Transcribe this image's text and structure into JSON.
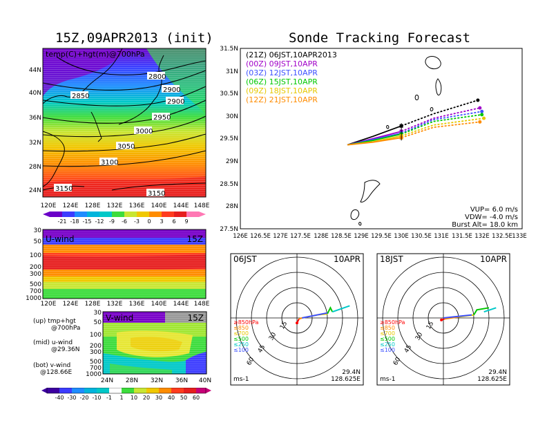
{
  "left_title": "15Z,09APR2013 (init)",
  "right_title": "Sonde Tracking Forecast",
  "map_panel": {
    "overlay_label": "temp(C)+hgt(m)@700hPa",
    "lat_ticks": [
      "44N",
      "40N",
      "36N",
      "32N",
      "28N",
      "24N"
    ],
    "lon_ticks": [
      "120E",
      "124E",
      "128E",
      "132E",
      "136E",
      "140E",
      "144E",
      "148E"
    ],
    "contour_labels": [
      "2800",
      "2850",
      "2900",
      "2900",
      "2950",
      "3000",
      "3050",
      "3100",
      "3150",
      "3150"
    ],
    "colorbar_ticks": [
      "-21",
      "-18",
      "-15",
      "-12",
      "-9",
      "-6",
      "-3",
      "0",
      "3",
      "6",
      "9"
    ]
  },
  "u_panel": {
    "label": "U-wind",
    "time": "15Z",
    "pressure_ticks": [
      "30",
      "50",
      "100",
      "200",
      "300",
      "500",
      "700",
      "1000"
    ],
    "lon_ticks": [
      "120E",
      "124E",
      "128E",
      "132E",
      "136E",
      "140E",
      "144E",
      "148E"
    ]
  },
  "v_panel": {
    "label": "V-wind",
    "time": "15Z",
    "pressure_ticks": [
      "30",
      "50",
      "100",
      "200",
      "300",
      "500",
      "700",
      "1000"
    ],
    "lat_ticks": [
      "24N",
      "28N",
      "32N",
      "36N",
      "40N"
    ],
    "colorbar_ticks": [
      "-40",
      "-30",
      "-20",
      "-10",
      "-1",
      "1",
      "10",
      "20",
      "30",
      "40",
      "50",
      "60"
    ]
  },
  "captions": [
    {
      "line1": "(up) tmp+hgt",
      "line2": "@700hPa"
    },
    {
      "line1": "(mid) u-wind",
      "line2": "@29.36N"
    },
    {
      "line1": "(bot) v-wind",
      "line2": "@128.66E"
    }
  ],
  "track_panel": {
    "legend": [
      {
        "text": "(21Z) 06JST,10APR2013",
        "color": "#000000"
      },
      {
        "text": "(00Z) 09JST,10APR",
        "color": "#a000c8"
      },
      {
        "text": "(03Z) 12JST,10APR",
        "color": "#3c50ff"
      },
      {
        "text": "(06Z) 15JST,10APR",
        "color": "#00c800"
      },
      {
        "text": "(09Z) 18JST,10APR",
        "color": "#e6c800"
      },
      {
        "text": "(12Z) 21JST,10APR",
        "color": "#ff8c00"
      }
    ],
    "lat_ticks": [
      "31.5N",
      "31N",
      "30.5N",
      "30N",
      "29.5N",
      "29N",
      "28.5N",
      "28N",
      "27.5N"
    ],
    "lon_ticks": [
      "126E",
      "126.5E",
      "127E",
      "127.5E",
      "128E",
      "128.5E",
      "129E",
      "129.5E",
      "130E",
      "130.5E",
      "131E",
      "131.5E",
      "132E",
      "132.5E",
      "133E"
    ],
    "params": [
      "VUP= 6.0 m/s",
      "VDW= -4.0 m/s",
      "Burst Alt= 18.0 km"
    ]
  },
  "hodo_left": {
    "time": "06JST",
    "date": "10APR",
    "ring_labels": [
      "15",
      "30",
      "45",
      "60"
    ],
    "legend": [
      {
        "text": "≥850hPa",
        "color": "#ff0000"
      },
      {
        "text": "≤850",
        "color": "#ff8c00"
      },
      {
        "text": "≤700",
        "color": "#e6c800"
      },
      {
        "text": "≤500",
        "color": "#00c800"
      },
      {
        "text": "≤250",
        "color": "#00c8c8"
      },
      {
        "text": "≤100",
        "color": "#3c50ff"
      }
    ],
    "unit": "ms-1",
    "lat": "29.4N",
    "lon": "128.625E"
  },
  "hodo_right": {
    "time": "18JST",
    "date": "10APR",
    "ring_labels": [
      "15",
      "30",
      "45",
      "60"
    ],
    "legend": [
      {
        "text": "≥850hPa",
        "color": "#ff0000"
      },
      {
        "text": "≤850",
        "color": "#ff8c00"
      },
      {
        "text": "≤700",
        "color": "#e6c800"
      },
      {
        "text": "≤500",
        "color": "#00c800"
      },
      {
        "text": "≤250",
        "color": "#00c8c8"
      },
      {
        "text": "≤100",
        "color": "#3c50ff"
      }
    ],
    "unit": "ms-1",
    "lat": "29.4N",
    "lon": "128.625E"
  },
  "chart_data": [
    {
      "type": "heatmap",
      "title": "temp(C)+hgt(m)@700hPa",
      "xlabel": "",
      "ylabel": "",
      "xlim": [
        120,
        150
      ],
      "ylim": [
        22,
        48
      ],
      "contour_values": [
        2800,
        2850,
        2900,
        2950,
        3000,
        3050,
        3100,
        3150
      ],
      "colorbar_range": [
        -21,
        9
      ]
    },
    {
      "type": "heatmap",
      "title": "U-wind",
      "xlim": [
        120,
        150
      ],
      "pressure_levels": [
        30,
        50,
        100,
        200,
        300,
        500,
        700,
        1000
      ]
    },
    {
      "type": "heatmap",
      "title": "V-wind",
      "xlim": [
        24,
        40
      ],
      "pressure_levels": [
        30,
        50,
        100,
        200,
        300,
        500,
        700,
        1000
      ],
      "colorbar_range": [
        -40,
        60
      ]
    },
    {
      "type": "line",
      "title": "Sonde Tracking Forecast",
      "xlim": [
        126,
        133
      ],
      "ylim": [
        27.5,
        31.5
      ],
      "launch": {
        "lon": 128.66,
        "lat": 29.36
      },
      "series": [
        {
          "name": "(21Z) 06JST,10APR2013",
          "color": "#000000",
          "points": [
            [
              128.66,
              29.36
            ],
            [
              129.3,
              29.55
            ],
            [
              130.0,
              29.78
            ],
            [
              130.8,
              30.05
            ],
            [
              131.9,
              30.35
            ]
          ],
          "end": [
            131.9,
            30.35
          ]
        },
        {
          "name": "(00Z) 09JST,10APR",
          "color": "#a000c8",
          "points": [
            [
              128.66,
              29.36
            ],
            [
              129.3,
              29.5
            ],
            [
              130.0,
              29.66
            ],
            [
              130.8,
              29.95
            ],
            [
              131.95,
              30.18
            ]
          ],
          "end": [
            131.95,
            30.18
          ]
        },
        {
          "name": "(03Z) 12JST,10APR",
          "color": "#3c50ff",
          "points": [
            [
              128.66,
              29.36
            ],
            [
              129.3,
              29.48
            ],
            [
              130.0,
              29.62
            ],
            [
              130.8,
              29.92
            ],
            [
              132.0,
              30.1
            ]
          ],
          "end": [
            132.0,
            30.1
          ]
        },
        {
          "name": "(06Z) 15JST,10APR",
          "color": "#00c800",
          "points": [
            [
              128.66,
              29.36
            ],
            [
              129.3,
              29.46
            ],
            [
              130.0,
              29.6
            ],
            [
              130.8,
              29.88
            ],
            [
              132.0,
              30.03
            ]
          ],
          "end": [
            132.0,
            30.03
          ]
        },
        {
          "name": "(09Z) 18JST,10APR",
          "color": "#e6c800",
          "points": [
            [
              128.66,
              29.36
            ],
            [
              129.3,
              29.43
            ],
            [
              130.0,
              29.56
            ],
            [
              130.8,
              29.8
            ],
            [
              132.05,
              29.95
            ]
          ],
          "end": [
            132.05,
            29.95
          ]
        },
        {
          "name": "(12Z) 21JST,10APR",
          "color": "#ff8c00",
          "points": [
            [
              128.66,
              29.36
            ],
            [
              129.3,
              29.42
            ],
            [
              130.0,
              29.52
            ],
            [
              130.8,
              29.75
            ],
            [
              131.95,
              29.87
            ]
          ],
          "end": [
            131.95,
            29.87
          ]
        }
      ]
    },
    {
      "type": "line",
      "title": "06JST 10APR",
      "series": [
        {
          "name": "≥850hPa",
          "color": "#ff0000",
          "points": [
            [
              0,
              -5
            ],
            [
              2,
              -1
            ]
          ]
        },
        {
          "name": "≤850",
          "color": "#ff8c00",
          "points": [
            [
              2,
              -1
            ],
            [
              5,
              0
            ]
          ]
        },
        {
          "name": "≤700",
          "color": "#e6c800",
          "points": [
            [
              5,
              0
            ],
            [
              20,
              3
            ],
            [
              30,
              4
            ]
          ]
        },
        {
          "name": "≤500",
          "color": "#00c800",
          "points": [
            [
              30,
              4
            ],
            [
              33,
              10
            ],
            [
              35,
              6
            ]
          ]
        },
        {
          "name": "≤250",
          "color": "#00c8c8",
          "points": [
            [
              35,
              6
            ],
            [
              52,
              12
            ]
          ]
        },
        {
          "name": "≤100",
          "color": "#3c50ff",
          "points": [
            [
              5,
              0
            ],
            [
              30,
              5
            ]
          ]
        }
      ]
    },
    {
      "type": "line",
      "title": "18JST 10APR",
      "series": [
        {
          "name": "≥850hPa",
          "color": "#ff0000",
          "points": [
            [
              -2,
              -2
            ],
            [
              1,
              -1
            ]
          ]
        },
        {
          "name": "≤850",
          "color": "#ff8c00",
          "points": [
            [
              1,
              -1
            ],
            [
              15,
              1
            ]
          ]
        },
        {
          "name": "≤700",
          "color": "#e6c800",
          "points": [
            [
              15,
              1
            ],
            [
              30,
              3
            ]
          ]
        },
        {
          "name": "≤500",
          "color": "#00c800",
          "points": [
            [
              30,
              3
            ],
            [
              33,
              8
            ],
            [
              45,
              10
            ]
          ]
        },
        {
          "name": "≤250",
          "color": "#00c8c8",
          "points": [
            [
              40,
              6
            ],
            [
              52,
              10
            ]
          ]
        },
        {
          "name": "≤100",
          "color": "#3c50ff",
          "points": [
            [
              0,
              0
            ],
            [
              28,
              3
            ]
          ]
        }
      ]
    }
  ]
}
